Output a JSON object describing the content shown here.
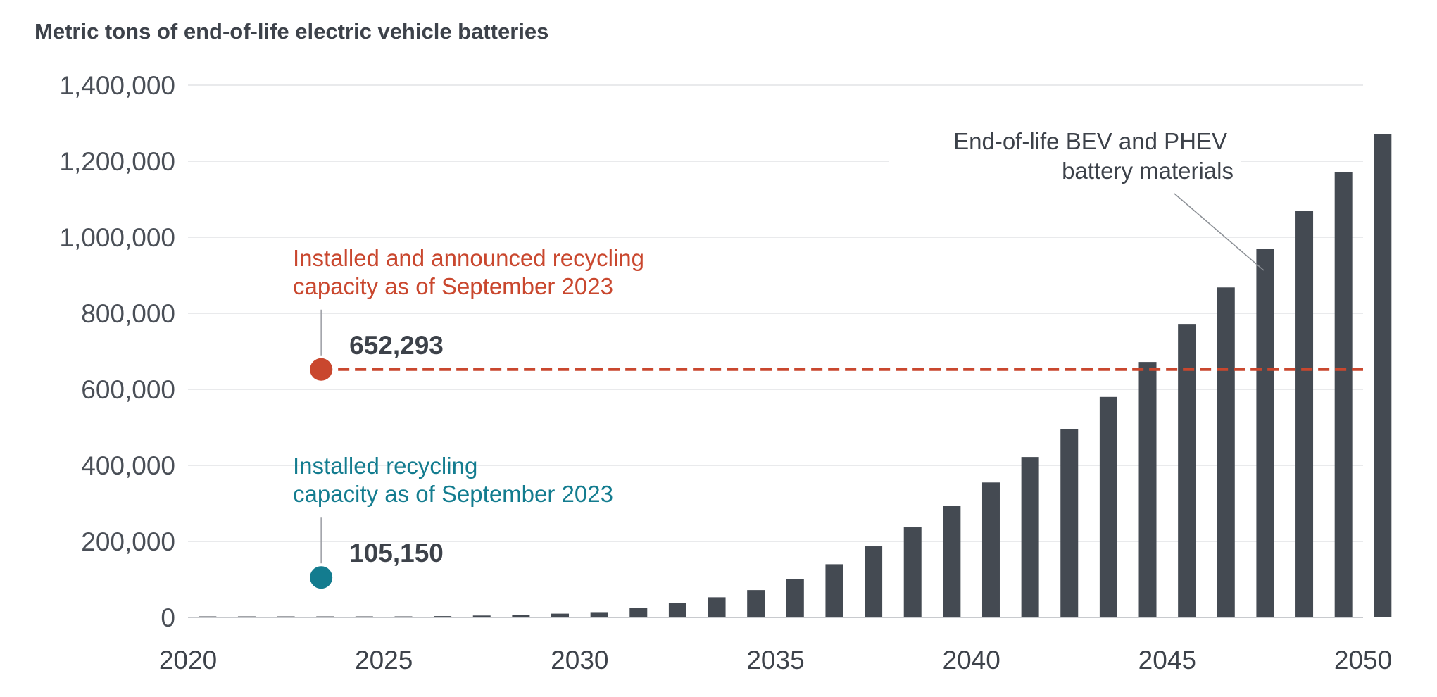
{
  "chart_data": {
    "type": "bar",
    "title": "Metric tons of end-of-life electric vehicle batteries",
    "xlabel": "",
    "ylabel": "",
    "xlim": [
      2020,
      2050
    ],
    "ylim": [
      0,
      1400000
    ],
    "x_ticks": [
      "2020",
      "2025",
      "2030",
      "2035",
      "2040",
      "2045",
      "2050"
    ],
    "y_ticks": [
      "0",
      "200,000",
      "400,000",
      "600,000",
      "800,000",
      "1,000,000",
      "1,200,000",
      "1,400,000"
    ],
    "grid": true,
    "series": [
      {
        "name": "End-of-life BEV and PHEV battery materials",
        "color": "#444a52",
        "x": [
          2020,
          2021,
          2022,
          2023,
          2024,
          2025,
          2026,
          2027,
          2028,
          2029,
          2030,
          2031,
          2032,
          2033,
          2034,
          2035,
          2036,
          2037,
          2038,
          2039,
          2040,
          2041,
          2042,
          2043,
          2044,
          2045,
          2046,
          2047,
          2048,
          2049,
          2050
        ],
        "values": [
          500,
          700,
          900,
          1200,
          1800,
          2500,
          3500,
          5000,
          7000,
          10000,
          14000,
          25000,
          38000,
          53000,
          72000,
          100000,
          140000,
          187000,
          237000,
          293000,
          355000,
          422000,
          495000,
          580000,
          672000,
          772000,
          868000,
          970000,
          1070000,
          1172000,
          1272000
        ]
      }
    ],
    "reference_lines": [
      {
        "label_line1": "Installed and announced recycling",
        "label_line2": "capacity as of September 2023",
        "value": 652293,
        "value_label": "652,293",
        "year": 2023,
        "color": "#c9472e",
        "dashed": true
      },
      {
        "label_line1": "Installed recycling",
        "label_line2": "capacity as of September 2023",
        "value": 105150,
        "value_label": "105,150",
        "year": 2023,
        "color": "#137c8f",
        "dashed": false
      }
    ],
    "annotation": {
      "line1": "End-of-life BEV and PHEV",
      "line2": "battery materials",
      "target_year": 2047
    }
  }
}
